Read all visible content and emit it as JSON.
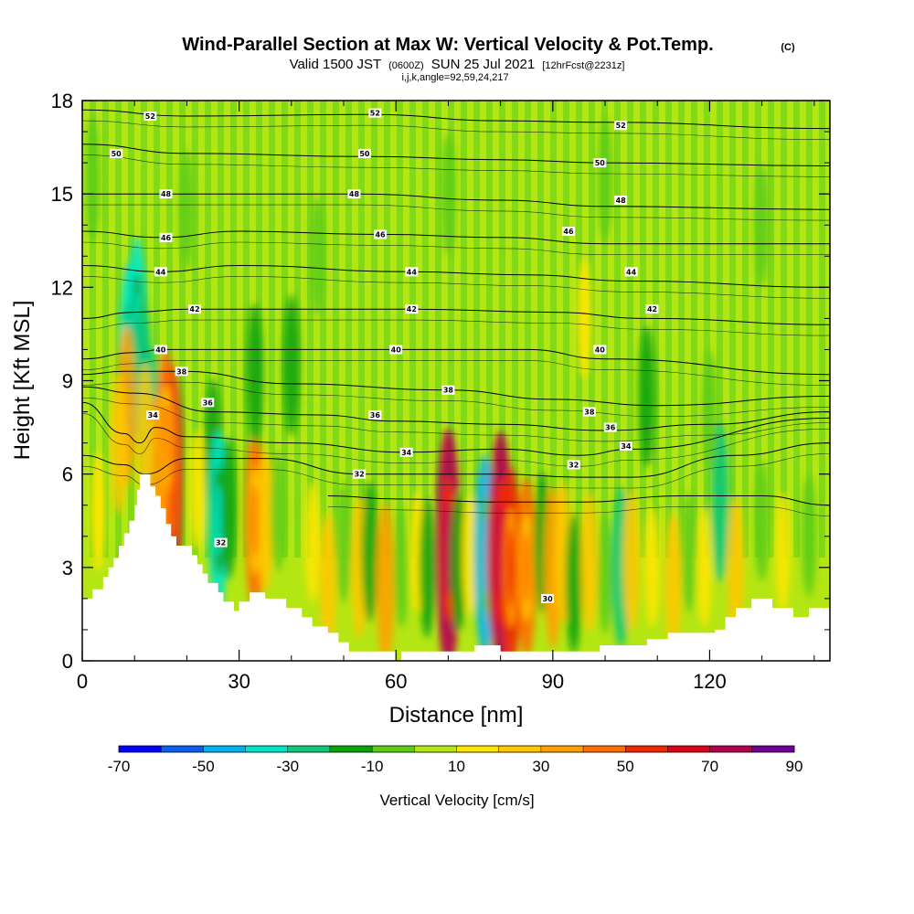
{
  "header": {
    "title": "Wind-Parallel Section at Max W: Vertical Velocity & Pot.Temp.",
    "title_mark": "(C)",
    "subtitle_a": "Valid 1500 JST",
    "subtitle_b": "(0600Z)",
    "subtitle_c": "SUN 25 Jul 2021",
    "subtitle_d": "[12hrFcst@2231z]",
    "subtitle_e": "i,j,k,angle=92,59,24,217"
  },
  "chart_data": {
    "type": "heatmap",
    "xlabel": "Distance [nm]",
    "ylabel": "Height [Kft MSL]",
    "xlim": [
      0,
      143
    ],
    "ylim": [
      0,
      18
    ],
    "x_ticks": [
      0,
      30,
      60,
      90,
      120
    ],
    "y_ticks": [
      0,
      3,
      6,
      9,
      12,
      15,
      18
    ],
    "colorbar": {
      "label": "Vertical Velocity [cm/s]",
      "levels": [
        -70,
        -60,
        -50,
        -40,
        -30,
        -20,
        -10,
        0,
        10,
        20,
        30,
        40,
        50,
        60,
        70,
        80,
        90
      ],
      "tick_labels": [
        "-70",
        "-50",
        "-30",
        "-10",
        "10",
        "30",
        "50",
        "70",
        "90"
      ],
      "colors": [
        "#0000ff",
        "#0a5ff0",
        "#00b4f0",
        "#00e6c8",
        "#10c878",
        "#0aa30a",
        "#5dcc14",
        "#b4e614",
        "#ffe600",
        "#ffc800",
        "#ffa000",
        "#ff6e00",
        "#f02800",
        "#dc0019",
        "#b40050",
        "#6e0096"
      ]
    },
    "terrain": [
      [
        0,
        2
      ],
      [
        2,
        2
      ],
      [
        2,
        2.3
      ],
      [
        4,
        2.3
      ],
      [
        4,
        2.7
      ],
      [
        5,
        2.7
      ],
      [
        5,
        3
      ],
      [
        6,
        3
      ],
      [
        6,
        3.3
      ],
      [
        7,
        3.3
      ],
      [
        7,
        3.7
      ],
      [
        8,
        3.7
      ],
      [
        8,
        4.1
      ],
      [
        9,
        4.1
      ],
      [
        9,
        4.5
      ],
      [
        10,
        4.5
      ],
      [
        10,
        5.0
      ],
      [
        10.5,
        5.0
      ],
      [
        10.5,
        5.5
      ],
      [
        11,
        5.5
      ],
      [
        11,
        6
      ],
      [
        13,
        6
      ],
      [
        13,
        5.6
      ],
      [
        14,
        5.6
      ],
      [
        14,
        5.3
      ],
      [
        15,
        5.3
      ],
      [
        15,
        4.9
      ],
      [
        16,
        4.9
      ],
      [
        16,
        4.4
      ],
      [
        17,
        4.4
      ],
      [
        17,
        4.0
      ],
      [
        18,
        4.0
      ],
      [
        18,
        3.7
      ],
      [
        21,
        3.7
      ],
      [
        21,
        3.4
      ],
      [
        22,
        3.4
      ],
      [
        22,
        3.1
      ],
      [
        23,
        3.1
      ],
      [
        23,
        2.8
      ],
      [
        24,
        2.8
      ],
      [
        24,
        2.5
      ],
      [
        26,
        2.5
      ],
      [
        26,
        2.2
      ],
      [
        27,
        2.2
      ],
      [
        27,
        1.9
      ],
      [
        29,
        1.9
      ],
      [
        29,
        1.6
      ],
      [
        30,
        1.6
      ],
      [
        30,
        1.9
      ],
      [
        32,
        1.9
      ],
      [
        32,
        2.2
      ],
      [
        35,
        2.2
      ],
      [
        35,
        2.0
      ],
      [
        39,
        2.0
      ],
      [
        39,
        1.7
      ],
      [
        42,
        1.7
      ],
      [
        42,
        1.4
      ],
      [
        44,
        1.4
      ],
      [
        44,
        1.1
      ],
      [
        47,
        1.1
      ],
      [
        47,
        0.9
      ],
      [
        49,
        0.9
      ],
      [
        49,
        0.6
      ],
      [
        51,
        0.6
      ],
      [
        51,
        0.3
      ],
      [
        60,
        0.3
      ],
      [
        60,
        0
      ],
      [
        61,
        0
      ],
      [
        61,
        0.3
      ],
      [
        75,
        0.3
      ],
      [
        75,
        0.5
      ],
      [
        80,
        0.5
      ],
      [
        80,
        0.3
      ],
      [
        99,
        0.3
      ],
      [
        99,
        0.5
      ],
      [
        108,
        0.5
      ],
      [
        108,
        0.7
      ],
      [
        112,
        0.7
      ],
      [
        112,
        0.9
      ],
      [
        121,
        0.9
      ],
      [
        121,
        1.0
      ],
      [
        123,
        1.0
      ],
      [
        123,
        1.4
      ],
      [
        125,
        1.4
      ],
      [
        125,
        1.7
      ],
      [
        128,
        1.7
      ],
      [
        128,
        2.0
      ],
      [
        132,
        2.0
      ],
      [
        132,
        1.7
      ],
      [
        136,
        1.7
      ],
      [
        136,
        1.4
      ],
      [
        139,
        1.4
      ],
      [
        139,
        1.7
      ],
      [
        143,
        1.7
      ]
    ],
    "cells": [
      {
        "x": 9,
        "y": 9.9,
        "w": -40
      },
      {
        "x": 10.5,
        "y": 10.7,
        "w": -40
      },
      {
        "x": 11.5,
        "y": 9.2,
        "w": -30
      },
      {
        "x": 13,
        "y": 7.6,
        "w": -30
      },
      {
        "x": 8.5,
        "y": 8.2,
        "w": 30
      },
      {
        "x": 7,
        "y": 7.0,
        "w": 20
      },
      {
        "x": 17,
        "y": 6.0,
        "w": 60
      },
      {
        "x": 16,
        "y": 7.1,
        "w": 40
      },
      {
        "x": 14.5,
        "y": 6.0,
        "w": 30
      },
      {
        "x": 12,
        "y": 7.3,
        "w": 20
      },
      {
        "x": 3,
        "y": 4.8,
        "w": 10
      },
      {
        "x": 22,
        "y": 5.5,
        "w": 10
      },
      {
        "x": 25,
        "y": 6.8,
        "w": -20
      },
      {
        "x": 26,
        "y": 4.5,
        "w": -40
      },
      {
        "x": 28,
        "y": 4.9,
        "w": -20
      },
      {
        "x": 33,
        "y": 4.5,
        "w": 40
      },
      {
        "x": 35,
        "y": 4.5,
        "w": 20
      },
      {
        "x": 37.5,
        "y": 4.8,
        "w": -10
      },
      {
        "x": 33,
        "y": 9.2,
        "w": -20
      },
      {
        "x": 40,
        "y": 9.5,
        "w": -20
      },
      {
        "x": 44,
        "y": 3.8,
        "w": 10
      },
      {
        "x": 47,
        "y": 2.5,
        "w": 20
      },
      {
        "x": 50,
        "y": 3.8,
        "w": -10
      },
      {
        "x": 53,
        "y": 3.0,
        "w": 20
      },
      {
        "x": 55,
        "y": 3.5,
        "w": -20
      },
      {
        "x": 58,
        "y": 2.5,
        "w": 30
      },
      {
        "x": 61,
        "y": 3.0,
        "w": -10
      },
      {
        "x": 64,
        "y": 3.5,
        "w": 10
      },
      {
        "x": 66,
        "y": 3.0,
        "w": -20
      },
      {
        "x": 70,
        "y": 3.6,
        "w": 70
      },
      {
        "x": 72,
        "y": 3.2,
        "w": -20
      },
      {
        "x": 74,
        "y": 3.4,
        "w": 10
      },
      {
        "x": 77,
        "y": 3.4,
        "w": -50
      },
      {
        "x": 79,
        "y": 3.3,
        "w": 30
      },
      {
        "x": 80,
        "y": 3.5,
        "w": 70
      },
      {
        "x": 82,
        "y": 3.0,
        "w": 50
      },
      {
        "x": 85,
        "y": 3.0,
        "w": 40
      },
      {
        "x": 88,
        "y": 3.8,
        "w": -20
      },
      {
        "x": 90,
        "y": 3.0,
        "w": 30
      },
      {
        "x": 92,
        "y": 3.5,
        "w": 20
      },
      {
        "x": 94,
        "y": 2.5,
        "w": -20
      },
      {
        "x": 97,
        "y": 3.2,
        "w": 20
      },
      {
        "x": 100,
        "y": 2.8,
        "w": -10
      },
      {
        "x": 103,
        "y": 3.0,
        "w": -30
      },
      {
        "x": 105,
        "y": 3.2,
        "w": 20
      },
      {
        "x": 109,
        "y": 3.0,
        "w": 10
      },
      {
        "x": 113,
        "y": 2.5,
        "w": 20
      },
      {
        "x": 116,
        "y": 3.5,
        "w": -10
      },
      {
        "x": 119,
        "y": 3.0,
        "w": 10
      },
      {
        "x": 122,
        "y": 5.1,
        "w": -30
      },
      {
        "x": 125,
        "y": 3.0,
        "w": 20
      },
      {
        "x": 130,
        "y": 4.5,
        "w": -10
      },
      {
        "x": 134,
        "y": 3.5,
        "w": 10
      },
      {
        "x": 139,
        "y": 4.0,
        "w": -10
      },
      {
        "x": 108,
        "y": 8.5,
        "w": -20
      },
      {
        "x": 120,
        "y": 8.0,
        "w": -10
      },
      {
        "x": 96,
        "y": 11.0,
        "w": 10
      },
      {
        "x": 2,
        "y": 15.5,
        "w": -10
      },
      {
        "x": 20,
        "y": 14.5,
        "w": -10
      },
      {
        "x": 45,
        "y": 13.0,
        "w": -10
      },
      {
        "x": 70,
        "y": 15.0,
        "w": -10
      },
      {
        "x": 100,
        "y": 15.5,
        "w": -10
      },
      {
        "x": 130,
        "y": 14.0,
        "w": -10
      }
    ],
    "isentropes": [
      {
        "level": 52,
        "points": [
          [
            0,
            17.7
          ],
          [
            20,
            17.5
          ],
          [
            55,
            17.55
          ],
          [
            80,
            17.35
          ],
          [
            100,
            17.3
          ],
          [
            143,
            17.1
          ]
        ]
      },
      {
        "level": 50,
        "points": [
          [
            0,
            16.6
          ],
          [
            20,
            16.3
          ],
          [
            55,
            16.2
          ],
          [
            80,
            16.1
          ],
          [
            100,
            16.0
          ],
          [
            143,
            15.9
          ]
        ]
      },
      {
        "level": 48,
        "points": [
          [
            0,
            15.0
          ],
          [
            20,
            15.0
          ],
          [
            52,
            15.0
          ],
          [
            80,
            14.8
          ],
          [
            100,
            14.6
          ],
          [
            143,
            14.5
          ]
        ]
      },
      {
        "level": 46,
        "points": [
          [
            0,
            13.8
          ],
          [
            15,
            13.6
          ],
          [
            30,
            13.8
          ],
          [
            57,
            13.7
          ],
          [
            80,
            13.6
          ],
          [
            100,
            13.4
          ],
          [
            143,
            13.4
          ]
        ]
      },
      {
        "level": 44,
        "points": [
          [
            0,
            12.7
          ],
          [
            15,
            12.5
          ],
          [
            30,
            12.7
          ],
          [
            62,
            12.5
          ],
          [
            85,
            12.4
          ],
          [
            105,
            12.2
          ],
          [
            143,
            12.0
          ]
        ]
      },
      {
        "level": 42,
        "points": [
          [
            0,
            11.0
          ],
          [
            10,
            11.2
          ],
          [
            20,
            11.3
          ],
          [
            40,
            11.3
          ],
          [
            63,
            11.3
          ],
          [
            90,
            11.2
          ],
          [
            108,
            11.0
          ],
          [
            143,
            10.8
          ]
        ]
      },
      {
        "level": 40,
        "points": [
          [
            0,
            9.7
          ],
          [
            10,
            9.9
          ],
          [
            15,
            10.0
          ],
          [
            30,
            10.0
          ],
          [
            60,
            10.0
          ],
          [
            85,
            10.0
          ],
          [
            100,
            9.7
          ],
          [
            143,
            9.2
          ]
        ]
      },
      {
        "level": 38,
        "points": [
          [
            0,
            9.2
          ],
          [
            8,
            9.3
          ],
          [
            19,
            9.3
          ],
          [
            40,
            8.9
          ],
          [
            70,
            8.7
          ],
          [
            90,
            8.4
          ],
          [
            110,
            8.2
          ],
          [
            143,
            8.5
          ]
        ]
      },
      {
        "level": 36,
        "points": [
          [
            0,
            8.8
          ],
          [
            10,
            8.6
          ],
          [
            25,
            8.0
          ],
          [
            45,
            7.9
          ],
          [
            60,
            7.7
          ],
          [
            80,
            7.6
          ],
          [
            100,
            7.4
          ],
          [
            120,
            7.6
          ],
          [
            143,
            8.0
          ]
        ]
      },
      {
        "level": 34,
        "points": [
          [
            0,
            8.3
          ],
          [
            8,
            7.3
          ],
          [
            11,
            7.0
          ],
          [
            14,
            7.5
          ],
          [
            20,
            7.2
          ],
          [
            40,
            7.0
          ],
          [
            62,
            6.7
          ],
          [
            80,
            6.8
          ],
          [
            95,
            6.6
          ],
          [
            105,
            6.8
          ],
          [
            143,
            7.8
          ]
        ]
      },
      {
        "level": 32,
        "points": [
          [
            0,
            6.6
          ],
          [
            8,
            6.3
          ],
          [
            12,
            6.0
          ],
          [
            20,
            6.5
          ],
          [
            35,
            6.5
          ],
          [
            53,
            6.0
          ],
          [
            70,
            6.0
          ],
          [
            80,
            6.0
          ],
          [
            95,
            5.9
          ],
          [
            105,
            5.9
          ],
          [
            125,
            6.6
          ],
          [
            143,
            7.0
          ]
        ]
      },
      {
        "level": 30,
        "points": [
          [
            47,
            5.3
          ],
          [
            60,
            5.2
          ],
          [
            80,
            5.1
          ],
          [
            95,
            5.1
          ],
          [
            115,
            5.3
          ],
          [
            130,
            5.3
          ],
          [
            143,
            5.0
          ]
        ]
      }
    ],
    "contour_labels": [
      {
        "text": "52",
        "x": 13,
        "y": 17.5
      },
      {
        "text": "50",
        "x": 6.5,
        "y": 16.3
      },
      {
        "text": "48",
        "x": 16,
        "y": 15.0
      },
      {
        "text": "46",
        "x": 16,
        "y": 13.6
      },
      {
        "text": "44",
        "x": 15,
        "y": 12.5
      },
      {
        "text": "42",
        "x": 21.5,
        "y": 11.3
      },
      {
        "text": "40",
        "x": 15,
        "y": 10.0
      },
      {
        "text": "38",
        "x": 19,
        "y": 9.3
      },
      {
        "text": "36",
        "x": 24,
        "y": 8.3
      },
      {
        "text": "34",
        "x": 13.5,
        "y": 7.9
      },
      {
        "text": "52",
        "x": 56,
        "y": 17.6
      },
      {
        "text": "50",
        "x": 54,
        "y": 16.3
      },
      {
        "text": "48",
        "x": 52,
        "y": 15.0
      },
      {
        "text": "46",
        "x": 57,
        "y": 13.7
      },
      {
        "text": "44",
        "x": 63,
        "y": 12.5
      },
      {
        "text": "42",
        "x": 63,
        "y": 11.3
      },
      {
        "text": "40",
        "x": 60,
        "y": 10.0
      },
      {
        "text": "38",
        "x": 70,
        "y": 8.7
      },
      {
        "text": "36",
        "x": 56,
        "y": 7.9
      },
      {
        "text": "34",
        "x": 62,
        "y": 6.7
      },
      {
        "text": "32",
        "x": 53,
        "y": 6.0
      },
      {
        "text": "52",
        "x": 103,
        "y": 17.2
      },
      {
        "text": "50",
        "x": 99,
        "y": 16.0
      },
      {
        "text": "48",
        "x": 103,
        "y": 14.8
      },
      {
        "text": "46",
        "x": 93,
        "y": 13.8
      },
      {
        "text": "44",
        "x": 105,
        "y": 12.5
      },
      {
        "text": "42",
        "x": 109,
        "y": 11.3
      },
      {
        "text": "40",
        "x": 99,
        "y": 10.0
      },
      {
        "text": "38",
        "x": 97,
        "y": 8.0
      },
      {
        "text": "36",
        "x": 101,
        "y": 7.5
      },
      {
        "text": "34",
        "x": 104,
        "y": 6.9
      },
      {
        "text": "32",
        "x": 94,
        "y": 6.3
      },
      {
        "text": "32",
        "x": 26.5,
        "y": 3.8
      },
      {
        "text": "30",
        "x": 89,
        "y": 2.0
      }
    ]
  }
}
